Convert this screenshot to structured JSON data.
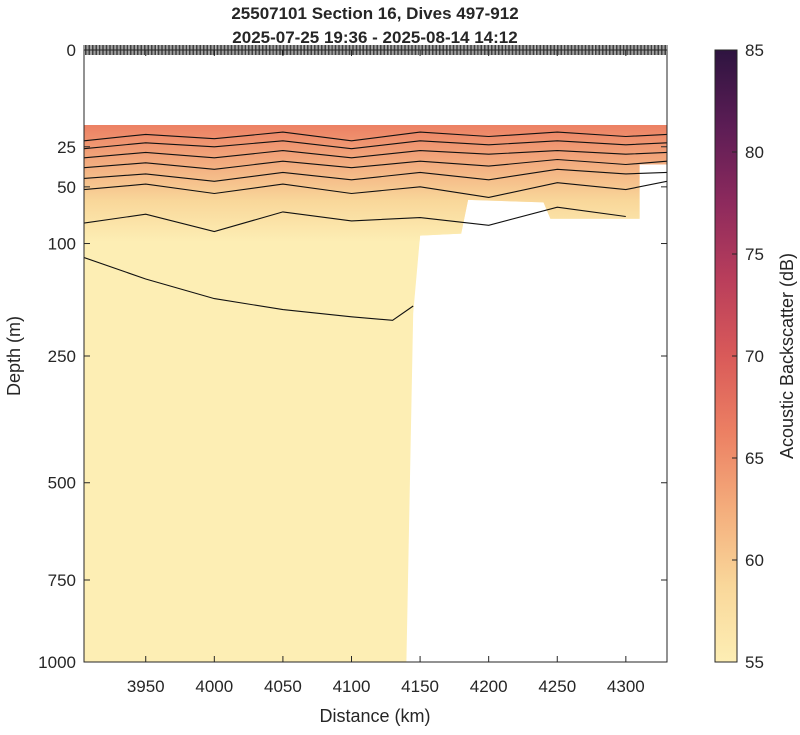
{
  "chart_data": {
    "type": "heatmap",
    "title": [
      "25507101 Section 16, Dives 497-912",
      "2025-07-25 19:36 - 2025-08-14 14:12"
    ],
    "xlabel": "Distance (km)",
    "ylabel": "Depth (m)",
    "xlim": [
      3905,
      4330
    ],
    "xticks": [
      3950,
      4000,
      4050,
      4100,
      4150,
      4200,
      4250,
      4300
    ],
    "y_scale": "sqrt",
    "ylim": [
      0,
      1000
    ],
    "yticks": [
      0,
      25,
      50,
      100,
      250,
      500,
      750,
      1000
    ],
    "colorbar": {
      "label": "Acoustic Backscatter (dB)",
      "range": [
        55,
        85
      ],
      "ticks": [
        55,
        60,
        65,
        70,
        75,
        80,
        85
      ],
      "colors": [
        "#fdeeb4",
        "#f9d79a",
        "#f4ad7c",
        "#ec8063",
        "#d95a59",
        "#b93e5b",
        "#8d2a5d",
        "#5c1d55",
        "#2e1440"
      ]
    },
    "data_top_depth": 15,
    "near_surface_band": {
      "depth_range": [
        15,
        70
      ],
      "typical_db": [
        60,
        66
      ]
    },
    "deep_layer": {
      "depth_range": [
        90,
        1000
      ],
      "typical_db": [
        55,
        57
      ]
    },
    "coverage": [
      {
        "x": 3905,
        "max_depth": 1000
      },
      {
        "x": 4140,
        "max_depth": 1000
      },
      {
        "x": 4145,
        "max_depth": 185
      },
      {
        "x": 4150,
        "max_depth": 92
      },
      {
        "x": 4180,
        "max_depth": 90
      },
      {
        "x": 4185,
        "max_depth": 60
      },
      {
        "x": 4240,
        "max_depth": 62
      },
      {
        "x": 4245,
        "max_depth": 76
      },
      {
        "x": 4310,
        "max_depth": 76
      },
      {
        "x": 4310,
        "max_depth": 35
      },
      {
        "x": 4330,
        "max_depth": 35
      }
    ],
    "contours": [
      {
        "x": [
          3905,
          3950,
          4000,
          4050,
          4100,
          4150,
          4200,
          4250,
          4300,
          4330
        ],
        "depth": [
          22,
          19,
          21,
          18,
          22,
          18,
          20,
          18,
          20,
          19
        ]
      },
      {
        "x": [
          3905,
          3950,
          4000,
          4050,
          4100,
          4150,
          4200,
          4250,
          4300,
          4330
        ],
        "depth": [
          26,
          23,
          25,
          22,
          26,
          22,
          24,
          22,
          24,
          23
        ]
      },
      {
        "x": [
          3905,
          3950,
          4000,
          4050,
          4100,
          4150,
          4200,
          4250,
          4300,
          4330
        ],
        "depth": [
          31,
          28,
          31,
          27,
          31,
          27,
          29,
          27,
          29,
          28
        ]
      },
      {
        "x": [
          3905,
          3950,
          4000,
          4050,
          4100,
          4150,
          4200,
          4250,
          4300,
          4330
        ],
        "depth": [
          37,
          34,
          38,
          33,
          37,
          33,
          36,
          32,
          35,
          33
        ]
      },
      {
        "x": [
          3905,
          3950,
          4000,
          4050,
          4100,
          4150,
          4200,
          4250,
          4300,
          4330
        ],
        "depth": [
          44,
          41,
          46,
          40,
          45,
          40,
          45,
          38,
          41,
          40
        ]
      },
      {
        "x": [
          3905,
          3950,
          4000,
          4050,
          4100,
          4150,
          4200,
          4250,
          4300,
          4330
        ],
        "depth": [
          52,
          48,
          55,
          48,
          55,
          50,
          58,
          47,
          52,
          46
        ]
      },
      {
        "x": [
          3905,
          3950,
          4000,
          4050,
          4100,
          4150,
          4200,
          4250,
          4300
        ],
        "depth": [
          80,
          72,
          88,
          70,
          78,
          75,
          82,
          66,
          74
        ]
      },
      {
        "x": [
          3905,
          3950,
          4000,
          4050,
          4100,
          4130,
          4145
        ],
        "depth": [
          115,
          140,
          165,
          180,
          190,
          195,
          175
        ]
      }
    ],
    "dive_ticks": {
      "depth": 0,
      "x_range": [
        3905,
        4330
      ],
      "count": 416
    }
  }
}
